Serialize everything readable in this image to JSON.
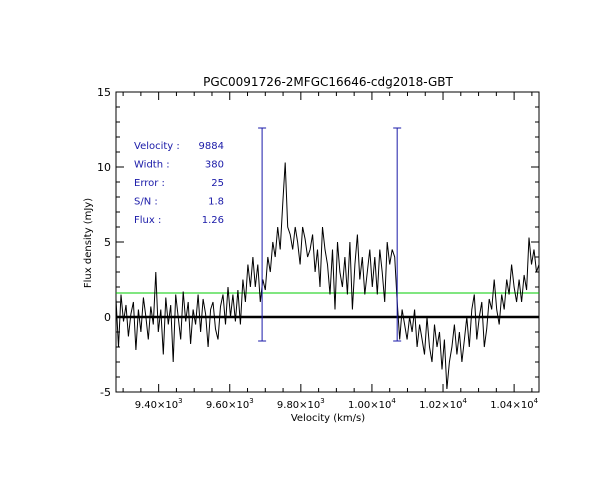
{
  "chart_data": {
    "type": "line",
    "title": "PGC0091726-2MFGC16646-cdg2018-GBT",
    "xlabel": "Velocity (km/s)",
    "ylabel": "Flux density (mJy)",
    "xlim": [
      9280,
      10470
    ],
    "ylim": [
      -5,
      15
    ],
    "x_ticks": [
      {
        "value": 9400,
        "mant": "9.40",
        "exp": "3"
      },
      {
        "value": 9600,
        "mant": "9.60",
        "exp": "3"
      },
      {
        "value": 9800,
        "mant": "9.80",
        "exp": "3"
      },
      {
        "value": 10000,
        "mant": "1.00",
        "exp": "4"
      },
      {
        "value": 10200,
        "mant": "1.02",
        "exp": "4"
      },
      {
        "value": 10400,
        "mant": "1.04",
        "exp": "4"
      }
    ],
    "y_ticks": [
      -5,
      0,
      5,
      10,
      15
    ],
    "colors": {
      "spectrum": "#000000",
      "zero_line": "#000000",
      "threshold": "#00cc00",
      "markers": "#1a1aa8",
      "labels": "#1a1aa8"
    },
    "zero_line": 0,
    "threshold_line": 1.6,
    "markers": [
      {
        "x": 9691,
        "y_top": 12.6,
        "y_bottom": -1.6
      },
      {
        "x": 10071,
        "y_top": 12.6,
        "y_bottom": -1.6
      }
    ],
    "stats": [
      {
        "label": "Velocity :",
        "value": "9884"
      },
      {
        "label": "Width :",
        "value": "380"
      },
      {
        "label": "Error :",
        "value": "25"
      },
      {
        "label": "S/N :",
        "value": "1.8"
      },
      {
        "label": "Flux :",
        "value": "1.26"
      }
    ],
    "series": [
      {
        "x": [
          9280,
          9287,
          9294,
          9301,
          9308,
          9315,
          9322,
          9329,
          9336,
          9343,
          9350,
          9357,
          9364,
          9371,
          9378,
          9385,
          9392,
          9399,
          9406,
          9413,
          9420,
          9427,
          9434,
          9441,
          9448,
          9455,
          9462,
          9469,
          9476,
          9483,
          9490,
          9497,
          9504,
          9511,
          9518,
          9525,
          9532,
          9539,
          9546,
          9553,
          9560,
          9567,
          9574,
          9581,
          9588,
          9595,
          9602,
          9609,
          9616,
          9623,
          9630,
          9637,
          9644,
          9651,
          9658,
          9665,
          9672,
          9679,
          9686,
          9693,
          9700,
          9707,
          9714,
          9721,
          9728,
          9735,
          9742,
          9749,
          9756,
          9763,
          9770,
          9777,
          9784,
          9791,
          9798,
          9805,
          9812,
          9819,
          9826,
          9833,
          9840,
          9847,
          9854,
          9861,
          9868,
          9875,
          9882,
          9889,
          9896,
          9903,
          9910,
          9917,
          9924,
          9931,
          9938,
          9945,
          9952,
          9959,
          9966,
          9973,
          9980,
          9987,
          9994,
          10001,
          10008,
          10015,
          10022,
          10029,
          10036,
          10043,
          10050,
          10057,
          10064,
          10071,
          10078,
          10085,
          10092,
          10099,
          10106,
          10113,
          10120,
          10127,
          10134,
          10141,
          10148,
          10155,
          10162,
          10169,
          10176,
          10183,
          10190,
          10197,
          10204,
          10211,
          10218,
          10225,
          10232,
          10239,
          10246,
          10253,
          10260,
          10267,
          10274,
          10281,
          10288,
          10295,
          10302,
          10309,
          10316,
          10323,
          10330,
          10337,
          10344,
          10351,
          10358,
          10365,
          10372,
          10379,
          10386,
          10393,
          10400,
          10407,
          10414,
          10421,
          10428,
          10435,
          10442,
          10449,
          10456,
          10463,
          10470
        ],
        "values": [
          1.2,
          -2.0,
          1.5,
          -0.3,
          0.8,
          -1.3,
          0.2,
          1.0,
          -2.2,
          0.5,
          -1.0,
          1.3,
          0.0,
          -1.5,
          0.7,
          -0.5,
          3.0,
          -1.0,
          0.5,
          -2.5,
          1.3,
          -0.5,
          0.8,
          -3.0,
          1.5,
          0.0,
          -1.5,
          1.7,
          -0.3,
          1.0,
          -1.8,
          0.5,
          -0.5,
          1.5,
          -1.0,
          1.2,
          0.2,
          -2.0,
          0.5,
          1.0,
          -0.8,
          -1.5,
          0.7,
          1.5,
          -0.5,
          2.0,
          0.0,
          1.5,
          -0.3,
          1.8,
          -0.5,
          2.5,
          1.0,
          3.5,
          2.0,
          4.0,
          2.0,
          3.5,
          1.0,
          2.5,
          1.8,
          4.0,
          3.0,
          5.0,
          4.0,
          6.0,
          4.5,
          7.5,
          10.3,
          6.0,
          5.5,
          4.5,
          6.0,
          5.0,
          3.5,
          6.0,
          5.2,
          4.0,
          4.5,
          5.5,
          3.0,
          4.5,
          2.0,
          6.0,
          4.5,
          3.5,
          1.5,
          4.5,
          0.5,
          5.0,
          3.0,
          2.0,
          4.0,
          1.5,
          5.0,
          0.5,
          3.5,
          5.5,
          2.5,
          4.0,
          1.5,
          3.0,
          4.5,
          2.0,
          4.0,
          1.5,
          4.5,
          3.0,
          1.0,
          5.0,
          3.5,
          4.5,
          4.0,
          1.0,
          -1.5,
          0.5,
          -0.5,
          -1.5,
          0.0,
          -1.0,
          0.5,
          -2.0,
          -0.5,
          -1.5,
          -2.5,
          0.0,
          -2.0,
          -3.0,
          -0.5,
          -2.0,
          -1.0,
          -3.5,
          -1.5,
          -4.8,
          -3.0,
          -2.0,
          -0.5,
          -2.5,
          -1.0,
          -3.0,
          -1.5,
          0.0,
          -2.0,
          0.5,
          1.5,
          -1.5,
          0.0,
          1.0,
          -2.0,
          -0.8,
          1.2,
          0.5,
          2.5,
          0.5,
          -0.5,
          1.5,
          0.5,
          2.5,
          1.5,
          3.5,
          2.0,
          1.0,
          2.5,
          1.0,
          2.8,
          1.8,
          5.3,
          3.5,
          4.5,
          3.0,
          3.5
        ]
      }
    ]
  }
}
